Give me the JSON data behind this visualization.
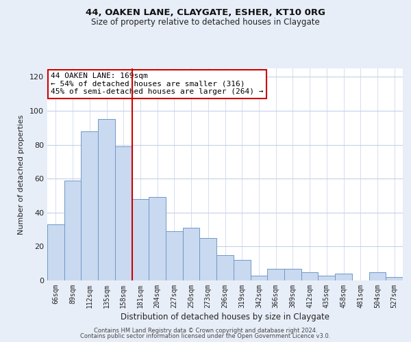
{
  "title": "44, OAKEN LANE, CLAYGATE, ESHER, KT10 0RG",
  "subtitle": "Size of property relative to detached houses in Claygate",
  "xlabel": "Distribution of detached houses by size in Claygate",
  "ylabel": "Number of detached properties",
  "categories": [
    "66sqm",
    "89sqm",
    "112sqm",
    "135sqm",
    "158sqm",
    "181sqm",
    "204sqm",
    "227sqm",
    "250sqm",
    "273sqm",
    "296sqm",
    "319sqm",
    "342sqm",
    "366sqm",
    "389sqm",
    "412sqm",
    "435sqm",
    "458sqm",
    "481sqm",
    "504sqm",
    "527sqm"
  ],
  "values": [
    33,
    59,
    88,
    95,
    79,
    48,
    49,
    29,
    31,
    25,
    15,
    12,
    3,
    7,
    7,
    5,
    3,
    4,
    0,
    5,
    2
  ],
  "bar_color": "#c9d9f0",
  "bar_edge_color": "#7098c8",
  "marker_line_index": 4,
  "marker_line_color": "#cc0000",
  "annotation_line1": "44 OAKEN LANE: 169sqm",
  "annotation_line2": "← 54% of detached houses are smaller (316)",
  "annotation_line3": "45% of semi-detached houses are larger (264) →",
  "annotation_box_edge_color": "#cc0000",
  "ylim": [
    0,
    125
  ],
  "yticks": [
    0,
    20,
    40,
    60,
    80,
    100,
    120
  ],
  "footer1": "Contains HM Land Registry data © Crown copyright and database right 2024.",
  "footer2": "Contains public sector information licensed under the Open Government Licence v3.0.",
  "background_color": "#e8eef8",
  "plot_bg_color": "#ffffff",
  "grid_color": "#c5d0e8"
}
